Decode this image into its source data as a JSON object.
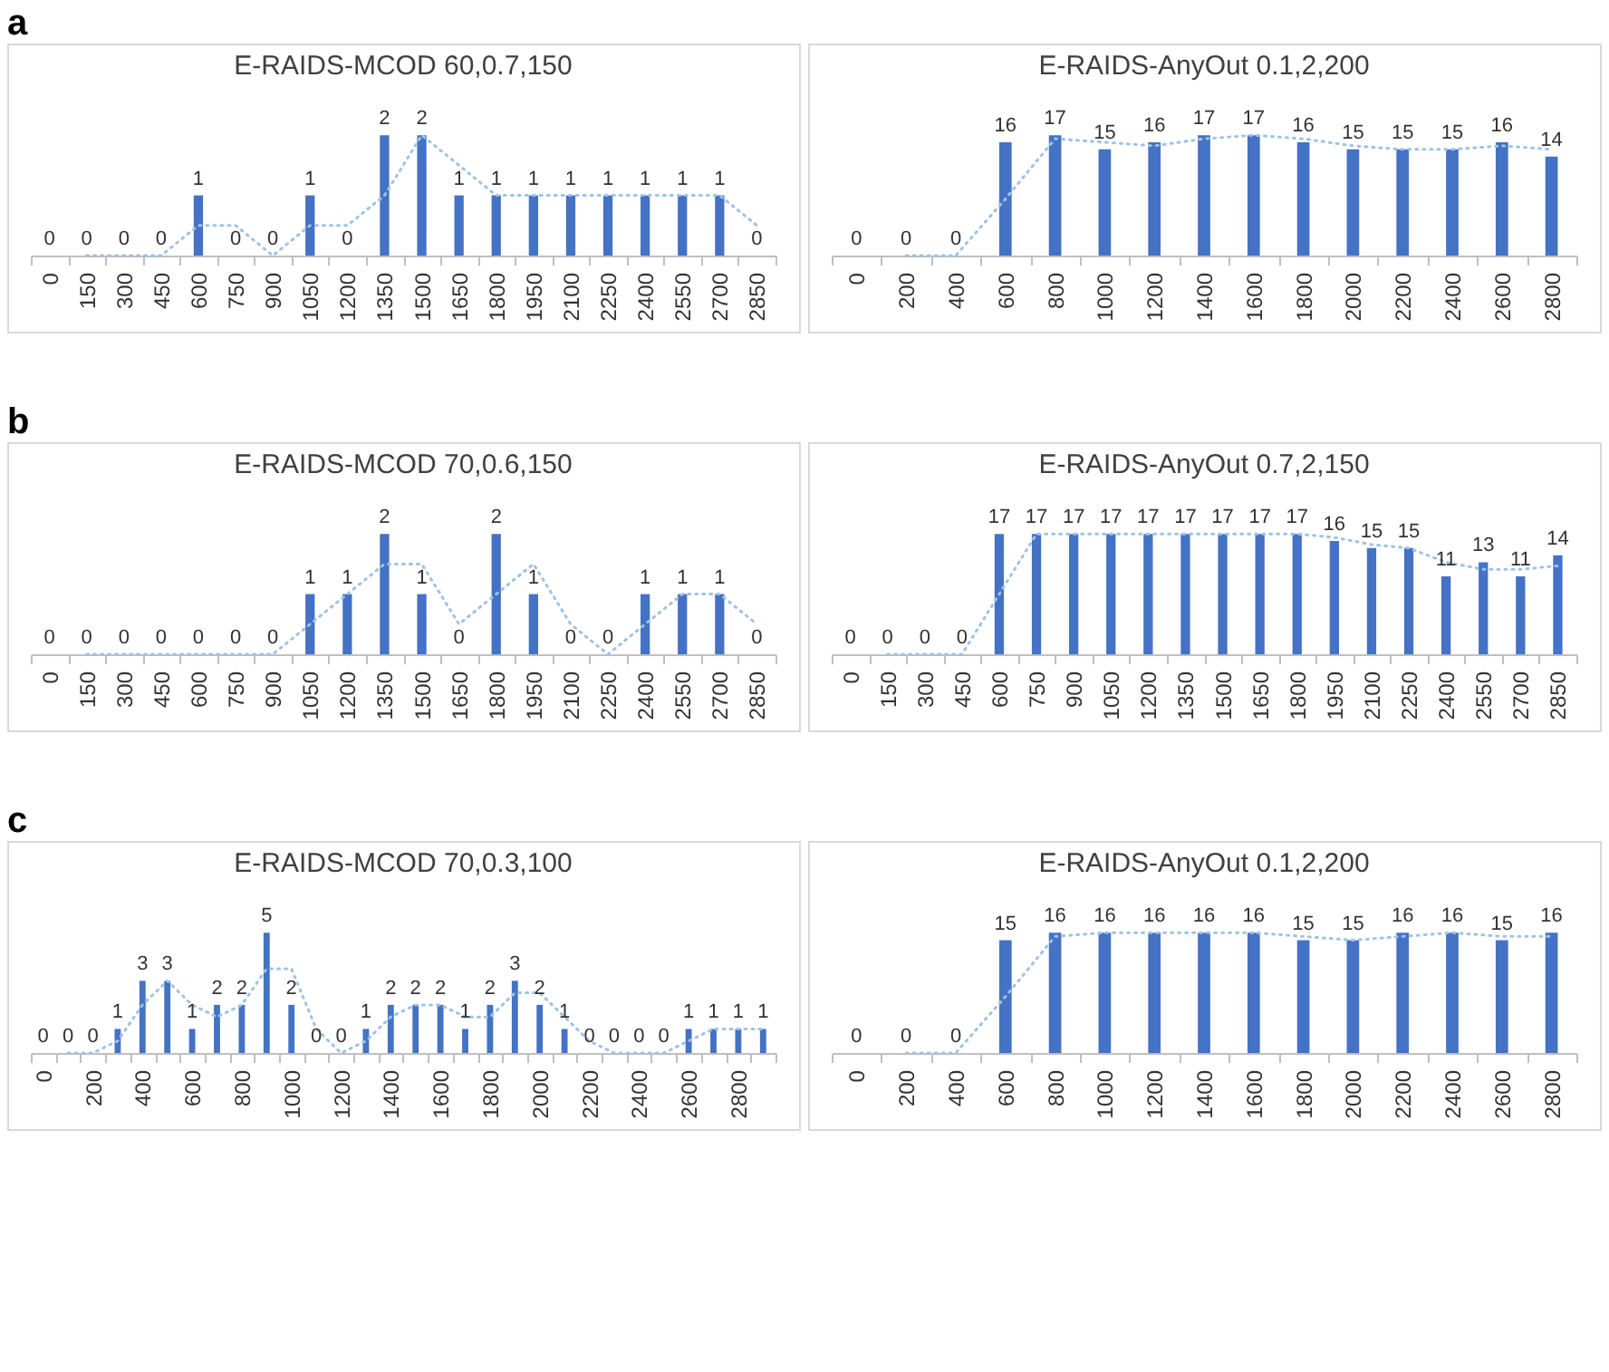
{
  "chart_data": [
    {
      "type": "bar",
      "title": "E-RAIDS-MCOD 60,0.7,150",
      "annotations": [
        "a"
      ],
      "categories": [
        "0",
        "150",
        "300",
        "450",
        "600",
        "750",
        "900",
        "1050",
        "1200",
        "1350",
        "1500",
        "1650",
        "1800",
        "1950",
        "2100",
        "2250",
        "2400",
        "2550",
        "2700",
        "2850"
      ],
      "series": [
        {
          "color": "#4472c4",
          "values": [
            0,
            0,
            0,
            0,
            1,
            0,
            0,
            1,
            0,
            2,
            2,
            1,
            1,
            1,
            1,
            1,
            1,
            1,
            1,
            0
          ],
          "value_labels": [
            "0",
            "0",
            "0",
            "0",
            "1",
            "0",
            "0",
            "1",
            "0",
            "2",
            "2",
            "1",
            "1",
            "1",
            "1",
            "1",
            "1",
            "1",
            "1",
            "0"
          ]
        },
        {
          "type": "line",
          "line_style": "dotted",
          "color": "#9dc3e6",
          "values": [
            null,
            0,
            0,
            0,
            0.5,
            0.5,
            0,
            0.5,
            0.5,
            1,
            2,
            1.5,
            1,
            1,
            1,
            1,
            1,
            1,
            1,
            0.5
          ]
        }
      ]
    },
    {
      "type": "bar",
      "title": "E-RAIDS-AnyOut 0.1,2,200",
      "categories": [
        "0",
        "200",
        "400",
        "600",
        "800",
        "1000",
        "1200",
        "1400",
        "1600",
        "1800",
        "2000",
        "2200",
        "2400",
        "2600",
        "2800"
      ],
      "series": [
        {
          "color": "#4472c4",
          "values": [
            0,
            0,
            0,
            16,
            17,
            15,
            16,
            17,
            17,
            16,
            15,
            15,
            15,
            16,
            14
          ],
          "value_labels": [
            "0",
            "0",
            "0",
            "16",
            "17",
            "15",
            "16",
            "17",
            "17",
            "16",
            "15",
            "15",
            "15",
            "16",
            "14"
          ]
        },
        {
          "type": "line",
          "line_style": "dotted",
          "color": "#9dc3e6",
          "values": [
            null,
            0,
            0,
            8,
            16.5,
            16,
            15.5,
            16.5,
            17,
            16.5,
            15.5,
            15,
            15,
            15.5,
            15
          ]
        }
      ]
    },
    {
      "type": "bar",
      "title": "E-RAIDS-MCOD 70,0.6,150",
      "annotations": [
        "b"
      ],
      "categories": [
        "0",
        "150",
        "300",
        "450",
        "600",
        "750",
        "900",
        "1050",
        "1200",
        "1350",
        "1500",
        "1650",
        "1800",
        "1950",
        "2100",
        "2250",
        "2400",
        "2550",
        "2700",
        "2850"
      ],
      "series": [
        {
          "color": "#4472c4",
          "values": [
            0,
            0,
            0,
            0,
            0,
            0,
            0,
            1,
            1,
            2,
            1,
            0,
            2,
            1,
            0,
            0,
            1,
            1,
            1,
            0
          ],
          "value_labels": [
            "0",
            "0",
            "0",
            "0",
            "0",
            "0",
            "0",
            "1",
            "1",
            "2",
            "1",
            "0",
            "2",
            "1",
            "0",
            "0",
            "1",
            "1",
            "1",
            "0"
          ]
        },
        {
          "type": "line",
          "line_style": "dotted",
          "color": "#9dc3e6",
          "values": [
            null,
            0,
            0,
            0,
            0,
            0,
            0,
            0.5,
            1,
            1.5,
            1.5,
            0.5,
            1,
            1.5,
            0.5,
            0,
            0.5,
            1,
            1,
            0.5
          ]
        }
      ]
    },
    {
      "type": "bar",
      "title": "E-RAIDS-AnyOut 0.7,2,150",
      "categories": [
        "0",
        "150",
        "300",
        "450",
        "600",
        "750",
        "900",
        "1050",
        "1200",
        "1350",
        "1500",
        "1650",
        "1800",
        "1950",
        "2100",
        "2250",
        "2400",
        "2550",
        "2700",
        "2850"
      ],
      "series": [
        {
          "color": "#4472c4",
          "values": [
            0,
            0,
            0,
            0,
            17,
            17,
            17,
            17,
            17,
            17,
            17,
            17,
            17,
            16,
            15,
            15,
            11,
            13,
            11,
            14
          ],
          "value_labels": [
            "0",
            "0",
            "0",
            "0",
            "17",
            "17",
            "17",
            "17",
            "17",
            "17",
            "17",
            "17",
            "17",
            "16",
            "15",
            "15",
            "11",
            "13",
            "11",
            "14"
          ]
        },
        {
          "type": "line",
          "line_style": "dotted",
          "color": "#9dc3e6",
          "values": [
            null,
            0,
            0,
            0,
            8.5,
            17,
            17,
            17,
            17,
            17,
            17,
            17,
            17,
            16.5,
            15.5,
            15,
            13,
            12,
            12,
            12.5
          ]
        }
      ]
    },
    {
      "type": "bar",
      "title": "E-RAIDS-MCOD 70,0.3,100",
      "annotations": [
        "c"
      ],
      "categories": [
        "0",
        null,
        "200",
        null,
        "400",
        null,
        "600",
        null,
        "800",
        null,
        "1000",
        null,
        "1200",
        null,
        "1400",
        null,
        "1600",
        null,
        "1800",
        null,
        "2000",
        null,
        "2200",
        null,
        "2400",
        null,
        "2600",
        null,
        "2800",
        null
      ],
      "series": [
        {
          "color": "#4472c4",
          "values": [
            0,
            0,
            0,
            1,
            3,
            3,
            1,
            2,
            2,
            5,
            2,
            0,
            0,
            1,
            2,
            2,
            2,
            1,
            2,
            3,
            2,
            1,
            0,
            0,
            0,
            0,
            1,
            1,
            1,
            1
          ],
          "value_labels": [
            "0",
            "0",
            "0",
            "1",
            "3",
            "3",
            "1",
            "2",
            "2",
            "5",
            "2",
            "0",
            "0",
            "1",
            "2",
            "2",
            "2",
            "1",
            "2",
            "3",
            "2",
            "1",
            "0",
            "0",
            "0",
            "0",
            "1",
            "1",
            "1",
            "1"
          ]
        },
        {
          "type": "line",
          "line_style": "dotted",
          "color": "#9dc3e6",
          "values": [
            null,
            0,
            0,
            0.5,
            2,
            3,
            2,
            1.5,
            2,
            3.5,
            3.5,
            1,
            0,
            0.5,
            1.5,
            2,
            2,
            1.5,
            1.5,
            2.5,
            2.5,
            1.5,
            0.5,
            0,
            0,
            0,
            0.5,
            1,
            1,
            1
          ]
        }
      ]
    },
    {
      "type": "bar",
      "title": "E-RAIDS-AnyOut 0.1,2,200",
      "categories": [
        "0",
        "200",
        "400",
        "600",
        "800",
        "1000",
        "1200",
        "1400",
        "1600",
        "1800",
        "2000",
        "2200",
        "2400",
        "2600",
        "2800"
      ],
      "series": [
        {
          "color": "#4472c4",
          "values": [
            0,
            0,
            0,
            15,
            16,
            16,
            16,
            16,
            16,
            15,
            15,
            16,
            16,
            15,
            16
          ],
          "value_labels": [
            "0",
            "0",
            "0",
            "15",
            "16",
            "16",
            "16",
            "16",
            "16",
            "15",
            "15",
            "16",
            "16",
            "15",
            "16"
          ]
        },
        {
          "type": "line",
          "line_style": "dotted",
          "color": "#9dc3e6",
          "values": [
            null,
            0,
            0,
            7.5,
            15.5,
            16,
            16,
            16,
            16,
            15.5,
            15,
            15.5,
            16,
            15.5,
            15.5
          ]
        }
      ]
    }
  ]
}
